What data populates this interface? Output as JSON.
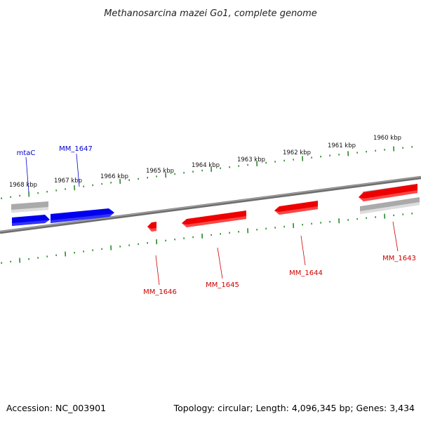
{
  "title": "Methanosarcina mazei Go1, complete genome",
  "footer": {
    "accession": "Accession: NC_003901",
    "summary": "Topology: circular; Length: 4,096,345 bp; Genes: 3,434"
  },
  "colors": {
    "forward_gene": "#0000ee",
    "reverse_gene": "#ee0000",
    "rna_feature": "#aaaaaa",
    "backbone": "#777777",
    "ticks": "#2a8a2a"
  },
  "kbp_ticks": [
    {
      "label": "1968 kbp"
    },
    {
      "label": "1967 kbp"
    },
    {
      "label": "1966 kbp"
    },
    {
      "label": "1965 kbp"
    },
    {
      "label": "1964 kbp"
    },
    {
      "label": "1963 kbp"
    },
    {
      "label": "1962 kbp"
    },
    {
      "label": "1961 kbp"
    },
    {
      "label": "1960 kbp"
    }
  ],
  "genes": [
    {
      "name": "mtaC",
      "strand": "forward"
    },
    {
      "name": "MM_1647",
      "strand": "forward"
    },
    {
      "name": "MM_1646",
      "strand": "reverse"
    },
    {
      "name": "MM_1645",
      "strand": "reverse"
    },
    {
      "name": "MM_1644",
      "strand": "reverse"
    },
    {
      "name": "MM_1643",
      "strand": "reverse"
    }
  ]
}
